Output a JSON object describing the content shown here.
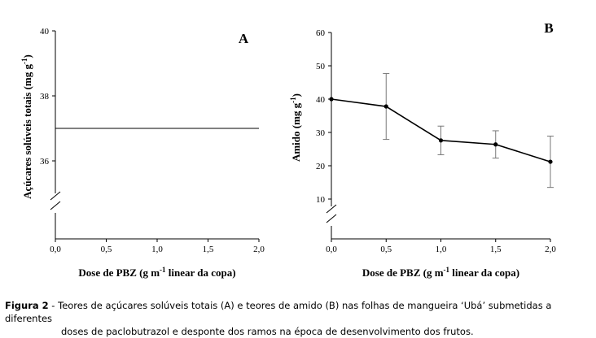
{
  "chart_data": [
    {
      "type": "line",
      "panel_label": "A",
      "ylabel": "Açúcares solúveis totais (mg g",
      "ylabel_sup": "-1",
      "ylabel_end": ")",
      "xlabel_pre": "Dose de PBZ (g m",
      "xlabel_sup": "-1",
      "xlabel_post": " linear da copa)",
      "ylim": [
        34,
        40
      ],
      "xlim": [
        0,
        2
      ],
      "y_ticks": [
        "40",
        "38",
        "36"
      ],
      "x_ticks": [
        "0,0",
        "0,5",
        "1,0",
        "1,5",
        "2,0"
      ],
      "axis_break": true,
      "series": [
        {
          "x": [
            0,
            2
          ],
          "y": [
            37,
            37
          ]
        }
      ]
    },
    {
      "type": "line",
      "panel_label": "B",
      "ylabel": "Amido (mg g",
      "ylabel_sup": "-1",
      "ylabel_end": ")",
      "xlabel_pre": "Dose de PBZ (g m",
      "xlabel_sup": "-1",
      "xlabel_post": " linear da copa)",
      "ylim": [
        0,
        60
      ],
      "xlim": [
        0,
        2
      ],
      "y_ticks": [
        "60",
        "50",
        "40",
        "30",
        "20",
        "10"
      ],
      "x_ticks": [
        "0,0",
        "0,5",
        "1,0",
        "1,5",
        "2,0"
      ],
      "axis_break": true,
      "series": [
        {
          "x": [
            0,
            0.5,
            1.0,
            1.5,
            2.0
          ],
          "y": [
            40,
            37.8,
            27.6,
            26.4,
            21.2
          ],
          "err_low": [
            40,
            27.9,
            23.3,
            22.3,
            13.5
          ],
          "err_high": [
            40,
            47.7,
            31.9,
            30.5,
            28.9
          ]
        }
      ]
    }
  ],
  "caption": {
    "label": "Figura 2",
    "text_line1": " - Teores de açúcares solúveis totais (A) e teores de amido (B) nas folhas de mangueira ‘Ubá’ submetidas a diferentes",
    "text_line2": "doses de paclobutrazol e desponte dos ramos na época de desenvolvimento dos frutos."
  }
}
